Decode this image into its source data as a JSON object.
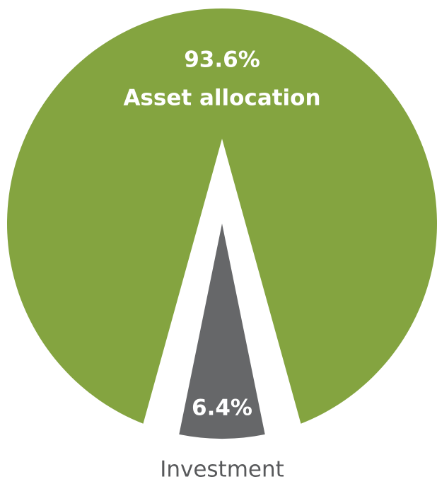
{
  "chart_data": {
    "type": "pie",
    "categories": [
      "Asset allocation",
      "Investment"
    ],
    "values": [
      93.6,
      6.4
    ],
    "value_labels": [
      "93.6%",
      "6.4%"
    ],
    "colors": [
      "#84a440",
      "#666769"
    ]
  }
}
